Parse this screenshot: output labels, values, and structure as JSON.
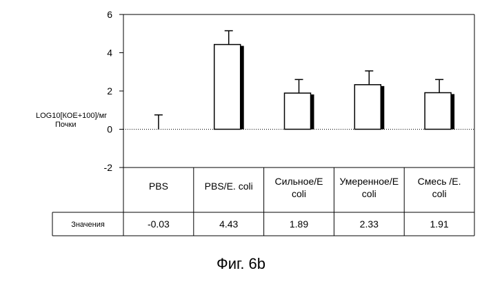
{
  "chart_data": {
    "type": "bar",
    "categories": [
      "PBS",
      "PBS/E. coli",
      "Сильное/E coli",
      "Умеренное/E coli",
      "Смесь /E. coli"
    ],
    "category_labels": [
      [
        "PBS"
      ],
      [
        "PBS/E. coli"
      ],
      [
        "Сильное/E",
        "coli"
      ],
      [
        "Умеренное/E",
        "coli"
      ],
      [
        "Смесь /E.",
        "coli"
      ]
    ],
    "values": [
      -0.03,
      4.43,
      1.89,
      2.33,
      1.91
    ],
    "error_upper": [
      0.75,
      5.15,
      2.6,
      3.05,
      2.6
    ],
    "ylabel_line1": "LOG10[КОЕ+100]/мг",
    "ylabel_line2": "Почки",
    "ylim": [
      -2,
      6
    ],
    "yticks": [
      -2,
      0,
      2,
      4,
      6
    ],
    "table_row_label": "Значения",
    "table_values": [
      "-0.03",
      "4.43",
      "1.89",
      "2.33",
      "1.91"
    ],
    "zero_line": "dotted",
    "grid": false,
    "legend": "none"
  },
  "figure_caption": "Фиг. 6b",
  "colors": {
    "bar_fill": "#ffffff",
    "bar_stroke": "#000000",
    "bar_shadow": "#000000",
    "axis": "#000000"
  }
}
